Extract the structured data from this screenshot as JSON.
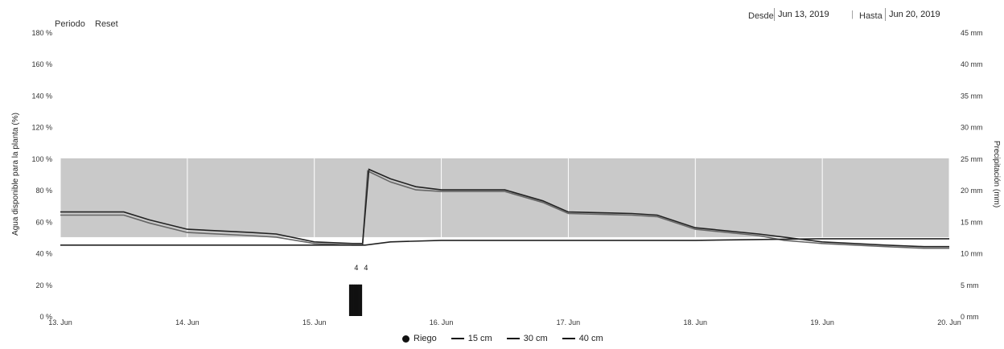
{
  "toolbar": {
    "period_label": "Periodo",
    "reset_label": "Reset",
    "from_label": "Desde",
    "from_value": "Jun 13, 2019",
    "to_label": "Hasta",
    "to_value": "Jun 20, 2019"
  },
  "colors": {
    "band": "#c9c9c9",
    "line_dark": "#222222",
    "line_gray": "#666666",
    "grid": "#ffffff"
  },
  "chart_data": {
    "type": "line",
    "xlabel": "",
    "ylabel": "Agua disponible para la planta (%)",
    "y2label": "Precipitación (mm)",
    "ylim": [
      0,
      180
    ],
    "y2lim": [
      0,
      45
    ],
    "y_ticks": [
      "0 %",
      "20 %",
      "40 %",
      "60 %",
      "80 %",
      "100 %",
      "120 %",
      "140 %",
      "160 %",
      "180 %"
    ],
    "y2_ticks": [
      "0 mm",
      "5 mm",
      "10 mm",
      "15 mm",
      "20 mm",
      "25 mm",
      "30 mm",
      "35 mm",
      "40 mm",
      "45 mm"
    ],
    "x_ticks": [
      "13. Jun",
      "14. Jun",
      "15. Jun",
      "16. Jun",
      "17. Jun",
      "18. Jun",
      "19. Jun",
      "20. Jun"
    ],
    "xlim": [
      13,
      20
    ],
    "optimal_band": [
      50,
      100
    ],
    "grid": true,
    "series": [
      {
        "name": "15 cm",
        "x": [
          13.0,
          13.5,
          13.7,
          14.0,
          14.5,
          14.7,
          15.0,
          15.3,
          15.38,
          15.42,
          15.6,
          15.8,
          16.0,
          16.5,
          16.8,
          17.0,
          17.5,
          17.7,
          18.0,
          18.5,
          18.7,
          19.0,
          19.5,
          19.8,
          20.0
        ],
        "y": [
          64,
          64,
          59,
          53,
          51,
          50,
          46,
          45,
          45,
          92,
          85,
          80,
          79,
          79,
          72,
          65,
          64,
          63,
          55,
          51,
          48,
          46,
          44,
          43,
          43
        ]
      },
      {
        "name": "30 cm",
        "x": [
          13.0,
          13.5,
          13.7,
          14.0,
          14.5,
          14.7,
          15.0,
          15.3,
          15.38,
          15.43,
          15.6,
          15.8,
          16.0,
          16.5,
          16.8,
          17.0,
          17.5,
          17.7,
          18.0,
          18.5,
          18.7,
          19.0,
          19.5,
          19.8,
          20.0
        ],
        "y": [
          66,
          66,
          61,
          55,
          53,
          52,
          47,
          46,
          46,
          93,
          87,
          82,
          80,
          80,
          73,
          66,
          65,
          64,
          56,
          52,
          50,
          47,
          45,
          44,
          44
        ]
      },
      {
        "name": "40 cm",
        "x": [
          13.0,
          15.3,
          15.4,
          15.6,
          16.0,
          17.0,
          18.0,
          19.0,
          20.0
        ],
        "y": [
          45,
          45,
          45,
          47,
          48,
          48,
          48,
          49,
          49
        ]
      }
    ],
    "riego": {
      "name": "Riego",
      "x": [
        15.28,
        15.29,
        15.3,
        15.31,
        15.32,
        15.33,
        15.34,
        15.35,
        15.36,
        15.37
      ],
      "y2": [
        5,
        5,
        5,
        5,
        5,
        5,
        5,
        5,
        5,
        5
      ],
      "labels": [
        "4",
        "4"
      ]
    }
  },
  "legend": {
    "riego": "Riego",
    "s15": "15 cm",
    "s30": "30 cm",
    "s40": "40 cm"
  }
}
